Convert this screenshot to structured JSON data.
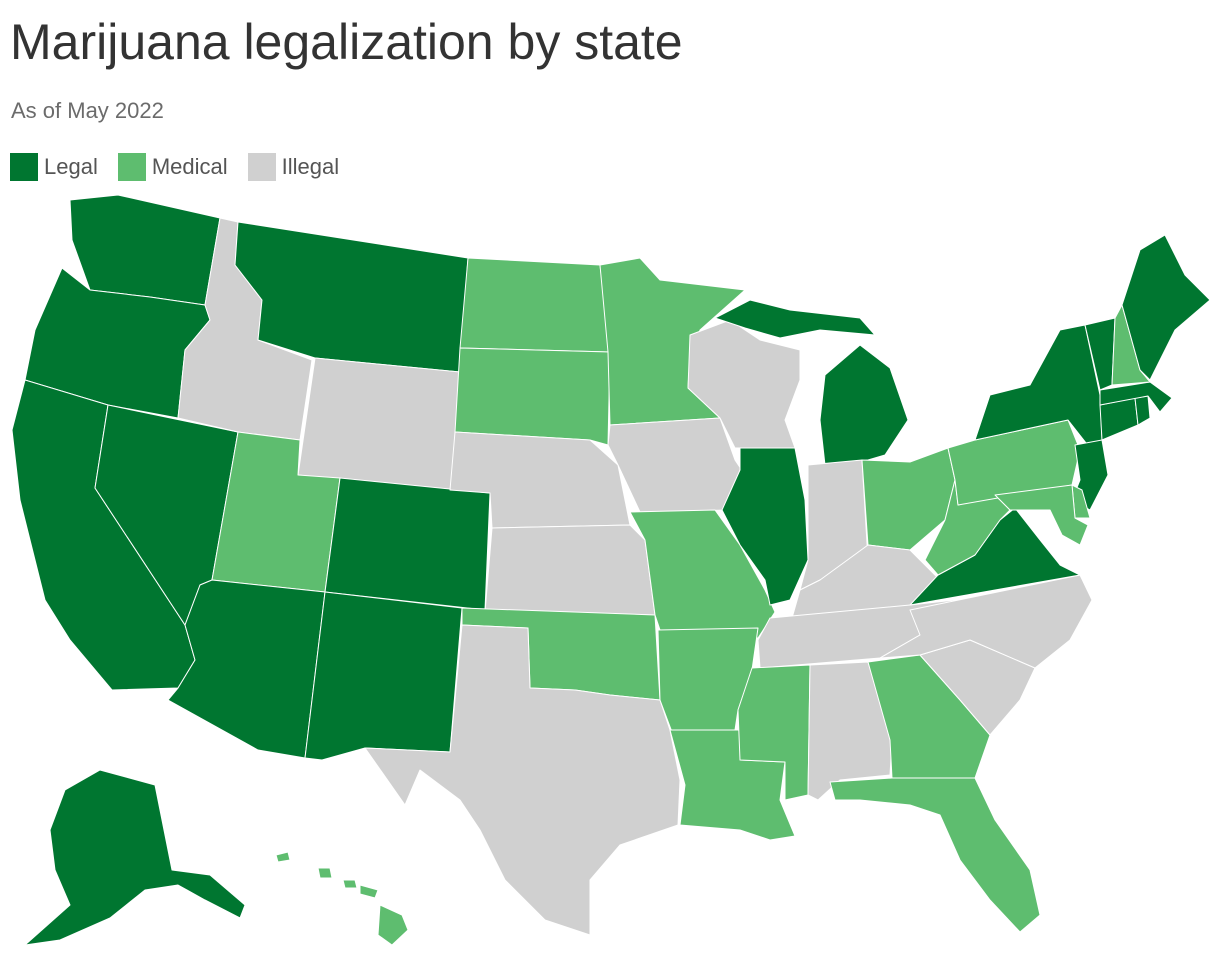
{
  "title": "Marijuana legalization by state",
  "subtitle": "As of May 2022",
  "legend": [
    {
      "key": "legal",
      "label": "Legal",
      "color": "#007630"
    },
    {
      "key": "medical",
      "label": "Medical",
      "color": "#5ebd6f"
    },
    {
      "key": "illegal",
      "label": "Illegal",
      "color": "#d0d0d0"
    }
  ],
  "states": {
    "WA": "legal",
    "OR": "legal",
    "CA": "legal",
    "NV": "legal",
    "ID": "illegal",
    "MT": "legal",
    "WY": "illegal",
    "UT": "medical",
    "AZ": "legal",
    "CO": "legal",
    "NM": "legal",
    "ND": "medical",
    "SD": "medical",
    "NE": "illegal",
    "KS": "illegal",
    "OK": "medical",
    "TX": "illegal",
    "MN": "medical",
    "IA": "illegal",
    "MO": "medical",
    "AR": "medical",
    "LA": "medical",
    "WI": "illegal",
    "IL": "legal",
    "MI": "legal",
    "IN": "illegal",
    "OH": "medical",
    "KY": "illegal",
    "TN": "illegal",
    "MS": "medical",
    "AL": "illegal",
    "GA": "medical",
    "FL": "medical",
    "SC": "illegal",
    "NC": "illegal",
    "VA": "legal",
    "WV": "medical",
    "PA": "medical",
    "NY": "legal",
    "VT": "legal",
    "NH": "medical",
    "ME": "legal",
    "MA": "legal",
    "CT": "legal",
    "RI": "legal",
    "NJ": "legal",
    "DE": "medical",
    "MD": "medical",
    "AK": "legal",
    "HI": "medical"
  }
}
